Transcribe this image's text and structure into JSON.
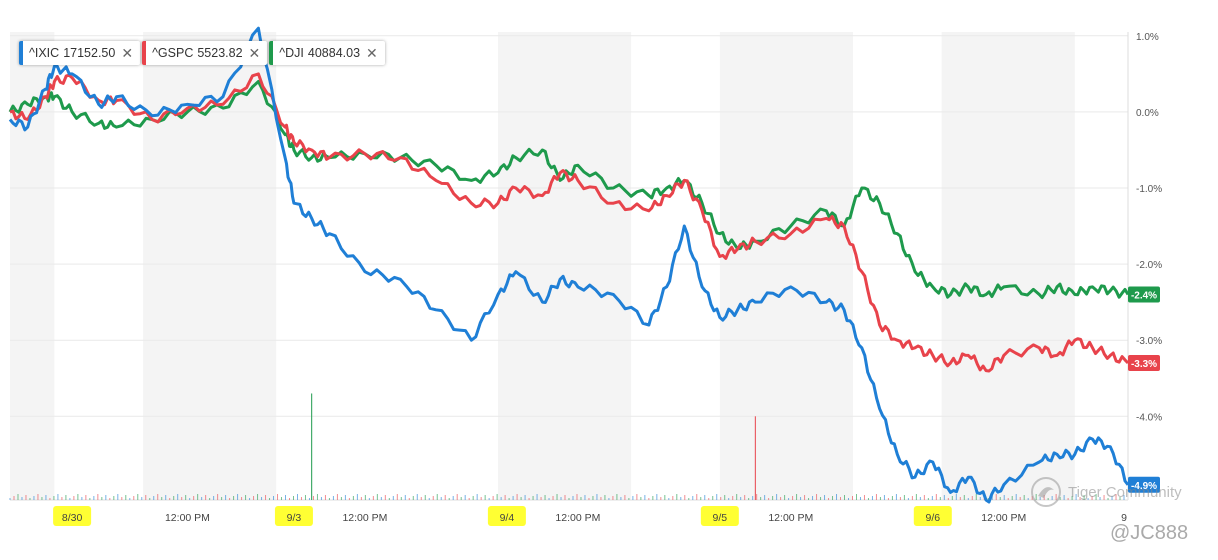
{
  "legend": [
    {
      "symbol": "^IXIC",
      "value": "17152.50",
      "color": "#1f7fd6",
      "close_icon": "close-icon"
    },
    {
      "symbol": "^GSPC",
      "value": "5523.82",
      "color": "#e8434b",
      "close_icon": "close-icon"
    },
    {
      "symbol": "^DJI",
      "value": "40884.03",
      "color": "#1e9a4c",
      "close_icon": "close-icon"
    }
  ],
  "watermark": {
    "brand": "Tiger Community",
    "handle": "@JC888",
    "brand_icon": "tiger-logo-icon"
  },
  "chart_data": {
    "type": "line",
    "x_tick_labels": [
      "8/30",
      "12:00 PM",
      "9/3",
      "12:00 PM",
      "9/4",
      "12:00 PM",
      "9/5",
      "12:00 PM",
      "9/6",
      "12:00 PM",
      "9"
    ],
    "x_tick_positions": [
      0.35,
      1.0,
      1.6,
      2.0,
      2.8,
      3.2,
      4.0,
      4.4,
      5.2,
      5.6,
      6.3
    ],
    "highlighted_date_ticks": [
      "8/30",
      "9/3",
      "9/4",
      "9/5",
      "9/6"
    ],
    "y_ticks": [
      1.0,
      0.0,
      -1.0,
      -2.0,
      -3.0,
      -4.0
    ],
    "y_tick_labels": [
      "1.0%",
      "0.0%",
      "-1.0%",
      "-2.0%",
      "-3.0%",
      "-4.0%"
    ],
    "ylim": [
      -5.1,
      1.05
    ],
    "xlim": [
      0,
      6.3
    ],
    "shaded_bands": [
      [
        0.0,
        0.25
      ],
      [
        0.75,
        1.5
      ],
      [
        2.75,
        3.5
      ],
      [
        4.0,
        4.75
      ],
      [
        5.25,
        6.0
      ]
    ],
    "grid": true,
    "end_labels": [
      {
        "series": "^DJI",
        "text": "-2.4%",
        "value": -2.4
      },
      {
        "series": "^GSPC",
        "text": "-3.3%",
        "value": -3.3
      },
      {
        "series": "^IXIC",
        "text": "-4.9%",
        "value": -4.9
      }
    ],
    "series": [
      {
        "name": "^IXIC",
        "color": "#1f7fd6",
        "x": [
          0,
          0.1,
          0.2,
          0.25,
          0.35,
          0.5,
          0.6,
          0.8,
          1.0,
          1.2,
          1.4,
          1.55,
          1.6,
          1.7,
          1.8,
          2.0,
          2.2,
          2.4,
          2.6,
          2.75,
          2.85,
          3.0,
          3.1,
          3.2,
          3.4,
          3.6,
          3.7,
          3.8,
          3.9,
          4.0,
          4.1,
          4.2,
          4.4,
          4.6,
          4.7,
          4.8,
          4.9,
          5.0,
          5.1,
          5.2,
          5.3,
          5.4,
          5.5,
          5.6,
          5.8,
          5.9,
          6.0,
          6.1,
          6.2,
          6.3
        ],
        "y": [
          -0.1,
          -0.2,
          0.3,
          0.6,
          0.5,
          0.1,
          0.2,
          -0.05,
          0.1,
          0.2,
          1.1,
          -0.6,
          -1.2,
          -1.4,
          -1.6,
          -2.1,
          -2.2,
          -2.6,
          -3.0,
          -2.4,
          -2.1,
          -2.5,
          -2.2,
          -2.3,
          -2.4,
          -2.8,
          -2.3,
          -1.5,
          -2.3,
          -2.7,
          -2.6,
          -2.5,
          -2.3,
          -2.5,
          -2.6,
          -3.1,
          -3.9,
          -4.5,
          -4.8,
          -4.6,
          -5.0,
          -4.8,
          -5.1,
          -4.9,
          -4.6,
          -4.5,
          -4.5,
          -4.3,
          -4.4,
          -4.9
        ]
      },
      {
        "name": "^GSPC",
        "color": "#e8434b",
        "x": [
          0,
          0.1,
          0.2,
          0.25,
          0.35,
          0.5,
          0.6,
          0.8,
          1.0,
          1.2,
          1.4,
          1.55,
          1.6,
          1.7,
          1.8,
          2.0,
          2.2,
          2.4,
          2.6,
          2.75,
          2.85,
          3.0,
          3.1,
          3.2,
          3.4,
          3.6,
          3.7,
          3.8,
          3.9,
          4.0,
          4.1,
          4.2,
          4.4,
          4.6,
          4.7,
          4.8,
          4.9,
          5.0,
          5.1,
          5.2,
          5.3,
          5.4,
          5.5,
          5.6,
          5.8,
          5.9,
          6.0,
          6.1,
          6.2,
          6.3
        ],
        "y": [
          0.0,
          -0.1,
          0.2,
          0.4,
          0.45,
          0.15,
          0.15,
          -0.1,
          0.05,
          0.1,
          0.5,
          -0.2,
          -0.4,
          -0.5,
          -0.6,
          -0.55,
          -0.6,
          -0.9,
          -1.2,
          -1.2,
          -1.0,
          -1.1,
          -0.8,
          -0.9,
          -1.2,
          -1.3,
          -1.1,
          -0.9,
          -1.3,
          -1.9,
          -1.8,
          -1.7,
          -1.6,
          -1.4,
          -1.5,
          -2.1,
          -2.8,
          -3.0,
          -3.1,
          -3.2,
          -3.3,
          -3.2,
          -3.4,
          -3.2,
          -3.1,
          -3.2,
          -3.0,
          -3.1,
          -3.2,
          -3.3
        ]
      },
      {
        "name": "^DJI",
        "color": "#1e9a4c",
        "x": [
          0,
          0.1,
          0.2,
          0.25,
          0.35,
          0.5,
          0.6,
          0.8,
          1.0,
          1.2,
          1.4,
          1.55,
          1.6,
          1.7,
          1.8,
          2.0,
          2.2,
          2.4,
          2.6,
          2.75,
          2.85,
          3.0,
          3.1,
          3.2,
          3.4,
          3.6,
          3.7,
          3.8,
          3.9,
          4.0,
          4.1,
          4.2,
          4.4,
          4.6,
          4.7,
          4.8,
          4.9,
          5.0,
          5.1,
          5.2,
          5.3,
          5.4,
          5.5,
          5.6,
          5.8,
          5.9,
          6.0,
          6.1,
          6.2,
          6.3
        ],
        "y": [
          0.0,
          0.1,
          0.2,
          0.2,
          0.0,
          -0.15,
          -0.2,
          -0.1,
          0.0,
          0.05,
          0.4,
          -0.3,
          -0.5,
          -0.6,
          -0.6,
          -0.55,
          -0.6,
          -0.7,
          -0.9,
          -0.8,
          -0.6,
          -0.5,
          -0.9,
          -0.7,
          -1.0,
          -1.1,
          -1.0,
          -0.9,
          -1.2,
          -1.6,
          -1.8,
          -1.7,
          -1.5,
          -1.3,
          -1.5,
          -1.0,
          -1.2,
          -1.6,
          -2.1,
          -2.3,
          -2.4,
          -2.3,
          -2.4,
          -2.3,
          -2.4,
          -2.3,
          -2.4,
          -2.3,
          -2.35,
          -2.4
        ]
      }
    ]
  }
}
